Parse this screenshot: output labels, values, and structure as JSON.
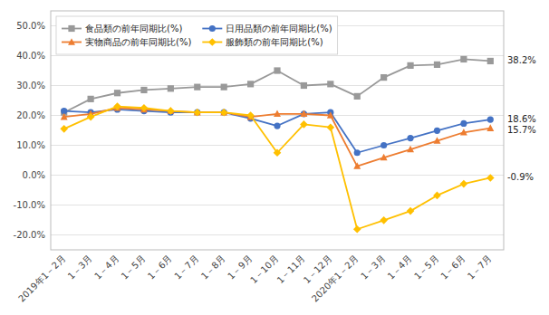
{
  "chart_data": {
    "type": "line",
    "categories": [
      "2019年1－2月",
      "1－3月",
      "1－4月",
      "1－5月",
      "1－6月",
      "1－7月",
      "1－8月",
      "1－9月",
      "1－10月",
      "1－11月",
      "1－12月",
      "2020年1－2月",
      "1－3月",
      "1－4月",
      "1－5月",
      "1－6月",
      "1－7月"
    ],
    "series": [
      {
        "name": "食品類の前年同期比(%)",
        "color": "#999999",
        "marker": "square",
        "values": [
          21.0,
          25.5,
          27.5,
          28.5,
          29.0,
          29.5,
          29.5,
          30.5,
          35.0,
          30.0,
          30.5,
          26.4,
          32.7,
          36.7,
          37.0,
          38.8,
          38.2
        ],
        "value_labels": [
          null,
          null,
          null,
          null,
          null,
          null,
          null,
          null,
          null,
          null,
          null,
          null,
          null,
          null,
          null,
          null,
          "38.2%"
        ]
      },
      {
        "name": "日用品類の前年同期比(%)",
        "color": "#4472C4",
        "marker": "circle",
        "values": [
          21.5,
          21.0,
          22.0,
          21.5,
          21.0,
          21.0,
          21.0,
          19.0,
          16.5,
          20.5,
          21.0,
          7.5,
          10.0,
          12.4,
          14.9,
          17.3,
          18.6
        ],
        "value_labels": [
          null,
          null,
          null,
          null,
          null,
          null,
          null,
          null,
          null,
          null,
          null,
          null,
          null,
          null,
          null,
          null,
          "18.6%"
        ]
      },
      {
        "name": "実物商品の前年同期比(%)",
        "color": "#ED7D31",
        "marker": "triangle",
        "values": [
          19.5,
          20.5,
          22.5,
          22.0,
          21.5,
          21.0,
          21.0,
          19.5,
          20.5,
          20.5,
          20.0,
          3.0,
          5.9,
          8.6,
          11.5,
          14.3,
          15.7
        ],
        "value_labels": [
          null,
          null,
          null,
          null,
          null,
          null,
          null,
          null,
          null,
          null,
          null,
          null,
          null,
          null,
          null,
          null,
          "15.7%"
        ]
      },
      {
        "name": "服飾類の前年同期比(%)",
        "color": "#FFC000",
        "marker": "diamond",
        "values": [
          15.5,
          19.5,
          23.0,
          22.5,
          21.5,
          21.0,
          21.0,
          20.0,
          7.5,
          17.0,
          16.0,
          -18.1,
          -15.1,
          -12.0,
          -6.8,
          -2.9,
          -0.9
        ],
        "value_labels": [
          null,
          null,
          null,
          null,
          null,
          null,
          null,
          null,
          null,
          null,
          null,
          null,
          null,
          null,
          null,
          null,
          "-0.9%"
        ]
      }
    ],
    "ylim": [
      -25.0,
      55.0
    ],
    "yticks": [
      {
        "value": -20.0,
        "label": "-20.0%"
      },
      {
        "value": -10.0,
        "label": "-10.0%"
      },
      {
        "value": 0.0,
        "label": "0.0%"
      },
      {
        "value": 10.0,
        "label": "10.0%"
      },
      {
        "value": 20.0,
        "label": "20.0%"
      },
      {
        "value": 30.0,
        "label": "30.0%"
      },
      {
        "value": 40.0,
        "label": "40.0%"
      },
      {
        "value": 50.0,
        "label": "50.0%"
      }
    ],
    "grid": true,
    "legend": "top-left"
  }
}
